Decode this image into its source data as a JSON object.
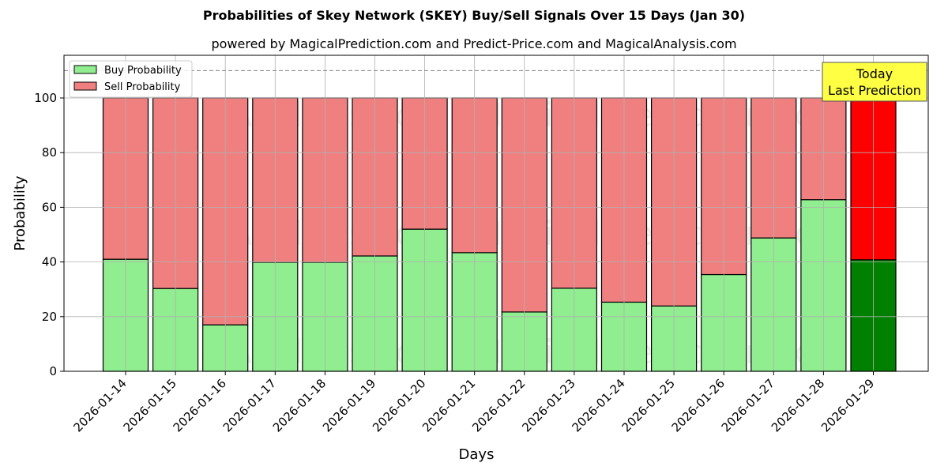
{
  "chart_data": {
    "type": "bar",
    "stacked": true,
    "title": "Probabilities of Skey Network (SKEY) Buy/Sell Signals Over 15 Days (Jan 30)",
    "subtitle": "powered by MagicalPrediction.com and Predict-Price.com and MagicalAnalysis.com",
    "xlabel": "Days",
    "ylabel": "Probability",
    "ylim": [
      0,
      115
    ],
    "yticks": [
      0,
      20,
      40,
      60,
      80,
      100
    ],
    "grid": true,
    "reference_line": {
      "y": 110,
      "style": "dashed",
      "color": "#808080"
    },
    "legend_position": "upper left",
    "categories": [
      "2026-01-14",
      "2026-01-15",
      "2026-01-16",
      "2026-01-17",
      "2026-01-18",
      "2026-01-19",
      "2026-01-20",
      "2026-01-21",
      "2026-01-22",
      "2026-01-23",
      "2026-01-24",
      "2026-01-25",
      "2026-01-26",
      "2026-01-27",
      "2026-01-28",
      "2026-01-29"
    ],
    "series": [
      {
        "name": "Buy Probability",
        "color": "#90ee90",
        "values": [
          41.0,
          30.3,
          17.0,
          39.9,
          39.9,
          42.2,
          52.0,
          43.4,
          21.7,
          30.4,
          25.3,
          23.9,
          35.4,
          48.8,
          62.8,
          40.8
        ]
      },
      {
        "name": "Sell Probability",
        "color": "#f08080",
        "values": [
          59.0,
          69.7,
          83.0,
          60.1,
          60.1,
          57.8,
          48.0,
          56.6,
          78.3,
          69.6,
          74.7,
          76.1,
          64.6,
          51.2,
          37.2,
          59.2
        ]
      }
    ],
    "highlight": {
      "index": 15,
      "buy_color": "#008000",
      "sell_color": "#ff0000"
    },
    "annotation": {
      "lines": [
        "Today",
        "Last Prediction"
      ],
      "background": "#ffff44"
    },
    "watermarks": [
      "MagicalAnalysis.com",
      "MagicalPrediction.com"
    ]
  }
}
